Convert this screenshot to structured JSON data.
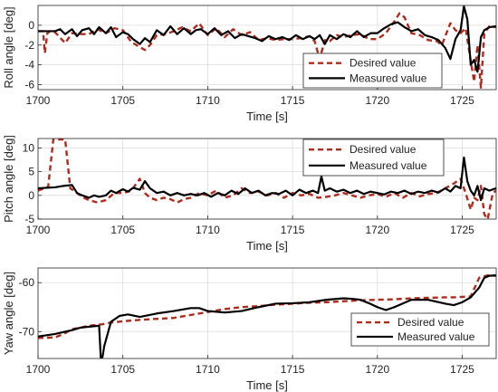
{
  "chart_data": [
    {
      "type": "line",
      "ylabel": "Roll angle [deg]",
      "xlabel": "Time [s]",
      "xlim": [
        1700,
        1727
      ],
      "ylim": [
        -6.5,
        2
      ],
      "xticks": [
        1700,
        1705,
        1710,
        1715,
        1720,
        1725
      ],
      "yticks": [
        0,
        -2,
        -4,
        -6
      ],
      "ytick_labels": [
        "0",
        "-2",
        "-4",
        "-6"
      ],
      "grid": true,
      "legend_position": "bottom-right",
      "series": [
        {
          "name": "Desired value",
          "style": "dashed",
          "color": "#b22a1c",
          "x": [
            1700,
            1700.3,
            1700.4,
            1700.55,
            1700.7,
            1701,
            1701.6,
            1702,
            1702.5,
            1703,
            1703.5,
            1704,
            1704.5,
            1705,
            1705.5,
            1706,
            1706.3,
            1706.6,
            1707,
            1707.5,
            1708,
            1708.5,
            1709,
            1709.5,
            1710,
            1710.5,
            1711,
            1711.5,
            1712,
            1712.5,
            1713,
            1713.5,
            1714,
            1714.5,
            1715,
            1715.5,
            1716,
            1716.3,
            1716.6,
            1716.9,
            1717.2,
            1717.6,
            1718,
            1718.5,
            1719,
            1719.5,
            1720,
            1720.5,
            1721,
            1721.3,
            1721.6,
            1722,
            1722.5,
            1723,
            1723.5,
            1723.8,
            1724,
            1724.3,
            1724.6,
            1724.9,
            1725.2,
            1725.5,
            1725.7,
            1725.9,
            1726.1,
            1726.3,
            1726.6,
            1727
          ],
          "y": [
            -0.6,
            -0.6,
            -2.8,
            -0.8,
            -0.6,
            -0.7,
            -1.8,
            -0.8,
            -0.9,
            -0.9,
            -0.4,
            -0.8,
            -0.3,
            -0.5,
            -1.7,
            -2.2,
            -2.5,
            -2.0,
            -1.0,
            -0.9,
            -0.6,
            -0.2,
            -0.6,
            0.2,
            -1.0,
            -0.3,
            -1.2,
            -0.4,
            -1.0,
            -0.7,
            -1.5,
            -1.3,
            -1.5,
            -1.4,
            -1.4,
            -1.3,
            -1.1,
            -1.6,
            -3.4,
            -1.5,
            -1.6,
            -1.0,
            -1.2,
            -1.0,
            -0.9,
            -1.4,
            -1.4,
            -0.8,
            0.4,
            1.2,
            0.8,
            -0.8,
            -1.0,
            -1.5,
            -1.6,
            -2.0,
            -1.1,
            0.2,
            -0.5,
            -0.8,
            -0.3,
            -3.6,
            -5.7,
            -2.0,
            -6.3,
            -0.8,
            -0.1,
            -0.2
          ]
        },
        {
          "name": "Measured value",
          "style": "solid",
          "color": "#000000",
          "x": [
            1700,
            1700.5,
            1701,
            1701.3,
            1701.6,
            1702,
            1702.3,
            1702.6,
            1703,
            1703.3,
            1703.6,
            1704,
            1704.3,
            1704.6,
            1705,
            1705.3,
            1705.6,
            1706,
            1706.3,
            1706.6,
            1707,
            1707.4,
            1707.8,
            1708.2,
            1708.6,
            1709,
            1709.3,
            1709.6,
            1710,
            1710.4,
            1710.8,
            1711.2,
            1711.6,
            1712,
            1712.4,
            1712.8,
            1713.2,
            1713.6,
            1714,
            1714.4,
            1714.8,
            1715.2,
            1715.6,
            1716,
            1716.3,
            1716.6,
            1716.9,
            1717.2,
            1717.6,
            1718,
            1718.4,
            1718.8,
            1719.2,
            1719.6,
            1720,
            1720.4,
            1720.8,
            1721.2,
            1721.6,
            1722,
            1722.4,
            1722.8,
            1723.2,
            1723.6,
            1724,
            1724.3,
            1724.6,
            1724.9,
            1725.1,
            1725.3,
            1725.5,
            1725.7,
            1725.9,
            1726.1,
            1726.3,
            1726.6,
            1727
          ],
          "y": [
            -0.6,
            -0.6,
            -0.6,
            -0.4,
            -0.9,
            -0.4,
            -1.1,
            -0.5,
            -0.3,
            -0.9,
            -0.2,
            -0.8,
            -0.2,
            -1.2,
            -0.7,
            -0.9,
            -1.4,
            -1.9,
            -1.3,
            -1.7,
            -0.5,
            -1.0,
            -0.1,
            -0.9,
            -0.3,
            -0.9,
            -0.5,
            -0.4,
            -0.9,
            -0.3,
            -1.0,
            -0.6,
            -1.3,
            -0.9,
            -1.1,
            -1.3,
            -1.6,
            -1.1,
            -1.4,
            -1.2,
            -1.5,
            -1.0,
            -1.4,
            -1.1,
            -1.4,
            -1.0,
            -1.9,
            -1.0,
            -1.4,
            -0.9,
            -1.2,
            -0.6,
            -1.2,
            -0.8,
            -0.8,
            -0.3,
            0.1,
            0.3,
            -0.2,
            -0.6,
            -0.4,
            -1.0,
            -1.2,
            -1.5,
            -2.3,
            -3.4,
            -1.4,
            -0.5,
            1.9,
            0.6,
            -4.0,
            -3.5,
            -4.7,
            -1.2,
            -0.5,
            -0.2,
            -0.1
          ]
        }
      ]
    },
    {
      "type": "line",
      "ylabel": "Pitch angle [deg]",
      "xlabel": "Time [s]",
      "xlim": [
        1700,
        1727
      ],
      "ylim": [
        -5,
        12
      ],
      "xticks": [
        1700,
        1705,
        1710,
        1715,
        1720,
        1725
      ],
      "yticks": [
        10,
        5,
        0,
        -5
      ],
      "ytick_labels": [
        "10",
        "5",
        "0",
        "-5"
      ],
      "grid": true,
      "legend_position": "top-right",
      "series": [
        {
          "name": "Desired value",
          "style": "dashed",
          "color": "#b22a1c",
          "x": [
            1700,
            1700.6,
            1700.9,
            1701.2,
            1701.6,
            1701.9,
            1702.3,
            1702.7,
            1703,
            1703.5,
            1704,
            1704.5,
            1705,
            1705.5,
            1706,
            1706.3,
            1706.6,
            1707,
            1707.4,
            1707.8,
            1708.2,
            1708.6,
            1709,
            1709.5,
            1710,
            1710.5,
            1711,
            1711.5,
            1712,
            1712.5,
            1713,
            1713.5,
            1714,
            1714.5,
            1715,
            1715.5,
            1716,
            1716.5,
            1717,
            1717.5,
            1718,
            1718.5,
            1719,
            1719.5,
            1720,
            1720.5,
            1721,
            1721.5,
            1722,
            1722.5,
            1723,
            1723.5,
            1724,
            1724.5,
            1724.9,
            1725.2,
            1725.5,
            1725.7,
            1725.9,
            1726.1,
            1726.3,
            1726.5,
            1726.8,
            1727
          ],
          "y": [
            1.0,
            1.8,
            11.8,
            11.8,
            11.8,
            1.5,
            0.5,
            -0.5,
            -1.0,
            -1.5,
            -1.0,
            0.5,
            0.5,
            1.0,
            3.5,
            0.5,
            -0.5,
            -1.0,
            -0.5,
            -0.8,
            -1.5,
            -0.8,
            -0.5,
            0.5,
            0.0,
            1.0,
            -0.5,
            0.0,
            1.5,
            0.5,
            0.8,
            0.0,
            0.5,
            -0.5,
            0.5,
            0.0,
            0.3,
            -0.5,
            -0.3,
            0.0,
            0.5,
            0.0,
            -0.5,
            0.0,
            0.3,
            -0.3,
            0.5,
            -0.5,
            0.5,
            -0.2,
            0.3,
            0.5,
            1.5,
            2.5,
            3.5,
            0.5,
            -3.0,
            -0.5,
            -1.0,
            2.0,
            -4.0,
            -5.0,
            0.5,
            1.0
          ]
        },
        {
          "name": "Measured value",
          "style": "solid",
          "color": "#000000",
          "x": [
            1700,
            1700.5,
            1701,
            1701.5,
            1702,
            1702.3,
            1702.6,
            1703,
            1703.3,
            1703.6,
            1704,
            1704.3,
            1704.6,
            1705,
            1705.3,
            1705.6,
            1706,
            1706.3,
            1706.6,
            1707,
            1707.4,
            1707.8,
            1708.2,
            1708.6,
            1709,
            1709.4,
            1709.8,
            1710.2,
            1710.6,
            1711,
            1711.4,
            1711.8,
            1712.2,
            1712.6,
            1713,
            1713.4,
            1713.8,
            1714.2,
            1714.6,
            1715,
            1715.4,
            1715.8,
            1716.2,
            1716.5,
            1716.7,
            1716.9,
            1717.2,
            1717.6,
            1718,
            1718.4,
            1718.8,
            1719.2,
            1719.6,
            1720,
            1720.4,
            1720.8,
            1721.2,
            1721.6,
            1722,
            1722.4,
            1722.8,
            1723.2,
            1723.6,
            1724,
            1724.3,
            1724.6,
            1724.9,
            1725.1,
            1725.3,
            1725.5,
            1725.7,
            1725.9,
            1726.1,
            1726.3,
            1726.6,
            1727
          ],
          "y": [
            1.5,
            1.6,
            1.7,
            2.0,
            2.2,
            0.5,
            0.0,
            -0.5,
            0.0,
            -0.3,
            0.0,
            1.0,
            0.5,
            1.3,
            0.8,
            1.6,
            1.2,
            3.0,
            1.5,
            0.5,
            0.8,
            0.0,
            0.5,
            0.0,
            0.3,
            0.0,
            0.5,
            -0.3,
            0.5,
            0.0,
            1.0,
            0.3,
            1.5,
            0.5,
            1.0,
            0.0,
            0.5,
            0.3,
            1.0,
            0.0,
            1.2,
            0.5,
            1.0,
            0.5,
            4.0,
            1.0,
            1.5,
            0.8,
            1.2,
            0.5,
            1.0,
            0.3,
            0.8,
            0.5,
            0.2,
            0.8,
            0.5,
            1.0,
            0.3,
            0.8,
            0.5,
            1.0,
            0.6,
            1.5,
            0.8,
            2.0,
            1.5,
            8.0,
            3.0,
            1.0,
            0.0,
            2.0,
            -1.0,
            1.5,
            1.0,
            1.5
          ]
        }
      ]
    },
    {
      "type": "line",
      "ylabel": "Yaw angle [deg]",
      "xlabel": "Time [s]",
      "xlim": [
        1700,
        1727
      ],
      "ylim": [
        -75.5,
        -57
      ],
      "xticks": [
        1700,
        1705,
        1710,
        1715,
        1720,
        1725
      ],
      "yticks": [
        -60,
        -70
      ],
      "ytick_labels": [
        "-60",
        "-70"
      ],
      "grid": true,
      "legend_position": "bottom-right",
      "series": [
        {
          "name": "Desired value",
          "style": "dashed",
          "color": "#b22a1c",
          "x": [
            1700,
            1701,
            1701.5,
            1702,
            1702.5,
            1703,
            1703.8,
            1704.2,
            1705,
            1706,
            1707,
            1708,
            1709,
            1710,
            1711,
            1712,
            1713,
            1714,
            1715,
            1716,
            1717,
            1718,
            1719,
            1720,
            1721,
            1722,
            1723,
            1724,
            1724.5,
            1725,
            1725.5,
            1726,
            1726.5,
            1727
          ],
          "y": [
            -71.3,
            -71.2,
            -70.5,
            -69.5,
            -69.2,
            -68.8,
            -68.5,
            -68.2,
            -67.9,
            -67.6,
            -67.4,
            -67.2,
            -66.6,
            -66.0,
            -65.4,
            -65.0,
            -64.8,
            -64.5,
            -64.3,
            -64.1,
            -64.0,
            -63.8,
            -63.6,
            -63.5,
            -63.4,
            -63.2,
            -63.1,
            -63.0,
            -63.0,
            -62.9,
            -62.8,
            -59.0,
            -58.5,
            -58.6
          ]
        },
        {
          "name": "Measured value",
          "style": "solid",
          "color": "#000000",
          "x": [
            1700,
            1701,
            1702,
            1702.5,
            1703,
            1703.6,
            1703.7,
            1703.8,
            1703.9,
            1704.3,
            1704.8,
            1705.3,
            1706,
            1707,
            1708,
            1709,
            1709.5,
            1710,
            1711,
            1712,
            1713,
            1714,
            1715,
            1716,
            1717,
            1718,
            1718.5,
            1719,
            1719.5,
            1720,
            1720.5,
            1721,
            1722,
            1723,
            1724,
            1724.5,
            1725,
            1725.5,
            1726,
            1726.3,
            1726.6,
            1727
          ],
          "y": [
            -71.0,
            -70.5,
            -69.7,
            -69.2,
            -69.0,
            -68.8,
            -75.5,
            -75.2,
            -73.0,
            -68.0,
            -66.8,
            -66.5,
            -67.0,
            -66.3,
            -65.8,
            -65.2,
            -65.2,
            -65.8,
            -66.1,
            -65.8,
            -65.0,
            -64.3,
            -64.2,
            -64.0,
            -63.5,
            -63.2,
            -63.3,
            -63.5,
            -64.2,
            -65.0,
            -65.6,
            -65.0,
            -63.5,
            -63.5,
            -64.3,
            -64.6,
            -64.0,
            -63.0,
            -61.0,
            -59.0,
            -58.6,
            -58.5
          ]
        }
      ]
    }
  ]
}
